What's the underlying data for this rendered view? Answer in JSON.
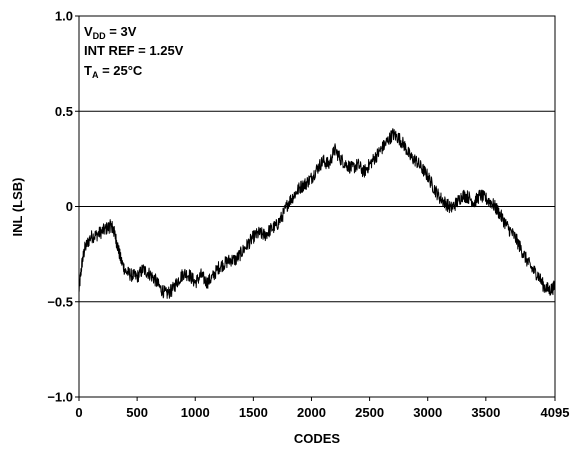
{
  "chart_data": {
    "type": "line",
    "xlabel": "CODES",
    "ylabel": "INL (LSB)",
    "xlim": [
      0,
      4095
    ],
    "ylim": [
      -1.0,
      1.0
    ],
    "x_ticks": [
      0,
      500,
      1000,
      1500,
      2000,
      2500,
      3000,
      3500,
      4095
    ],
    "x_tick_labels": [
      "0",
      "500",
      "1000",
      "1500",
      "2000",
      "2500",
      "3000",
      "3500",
      "4095"
    ],
    "y_ticks": [
      -1.0,
      -0.5,
      0,
      0.5,
      1.0
    ],
    "y_tick_labels": [
      "−1.0",
      "−0.5",
      "0",
      "0.5",
      "1.0"
    ],
    "grid": "horizontal",
    "conditions": {
      "vdd": {
        "main": "V",
        "sub": "DD",
        "rest": " = 3V"
      },
      "intref": "INT REF = 1.25V",
      "ta": {
        "main": "T",
        "sub": "A",
        "rest": " = 25°C"
      }
    },
    "series": [
      {
        "color": "#000000",
        "x": [
          0,
          25,
          50,
          100,
          150,
          200,
          250,
          280,
          300,
          330,
          360,
          400,
          450,
          500,
          550,
          600,
          650,
          700,
          750,
          800,
          850,
          900,
          950,
          1000,
          1050,
          1100,
          1150,
          1200,
          1250,
          1300,
          1350,
          1400,
          1450,
          1500,
          1550,
          1600,
          1650,
          1700,
          1750,
          1800,
          1850,
          1900,
          1950,
          2000,
          2050,
          2100,
          2150,
          2200,
          2250,
          2300,
          2350,
          2400,
          2450,
          2500,
          2550,
          2600,
          2650,
          2700,
          2750,
          2800,
          2850,
          2900,
          2950,
          3000,
          3050,
          3100,
          3150,
          3200,
          3250,
          3300,
          3350,
          3400,
          3450,
          3500,
          3550,
          3600,
          3650,
          3700,
          3750,
          3800,
          3850,
          3900,
          3950,
          4000,
          4050,
          4095
        ],
        "y": [
          -0.44,
          -0.3,
          -0.22,
          -0.16,
          -0.15,
          -0.13,
          -0.11,
          -0.1,
          -0.13,
          -0.2,
          -0.28,
          -0.34,
          -0.36,
          -0.37,
          -0.33,
          -0.35,
          -0.38,
          -0.43,
          -0.46,
          -0.44,
          -0.39,
          -0.35,
          -0.36,
          -0.4,
          -0.36,
          -0.4,
          -0.37,
          -0.32,
          -0.3,
          -0.28,
          -0.28,
          -0.24,
          -0.2,
          -0.16,
          -0.14,
          -0.15,
          -0.12,
          -0.1,
          -0.05,
          0.02,
          0.06,
          0.1,
          0.12,
          0.15,
          0.2,
          0.24,
          0.22,
          0.3,
          0.25,
          0.22,
          0.2,
          0.22,
          0.18,
          0.22,
          0.26,
          0.3,
          0.34,
          0.38,
          0.36,
          0.32,
          0.26,
          0.24,
          0.2,
          0.16,
          0.1,
          0.05,
          0.02,
          -0.01,
          0.02,
          0.06,
          0.05,
          0.02,
          0.06,
          0.04,
          0.02,
          -0.02,
          -0.07,
          -0.12,
          -0.16,
          -0.22,
          -0.28,
          -0.33,
          -0.36,
          -0.42,
          -0.44,
          -0.42
        ]
      }
    ]
  }
}
